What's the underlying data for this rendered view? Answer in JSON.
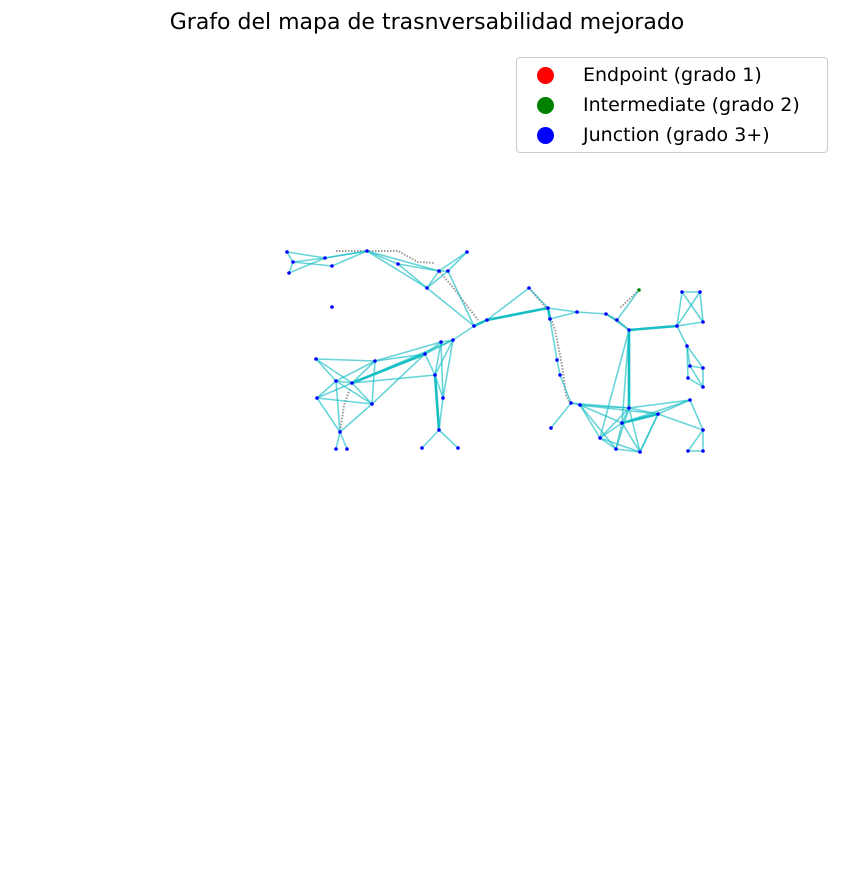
{
  "title": "Grafo del mapa de trasnversabilidad mejorado",
  "legend": {
    "items": [
      {
        "label": "Endpoint (grado 1)",
        "color": "#ff0000"
      },
      {
        "label": "Intermediate (grado 2)",
        "color": "#008000"
      },
      {
        "label": "Junction (grado 3+)",
        "color": "#0000ff"
      }
    ]
  },
  "colors": {
    "edge": "#17bfc4",
    "skeleton": "#9a9a9a",
    "junction_node": "#0000ff",
    "intermediate_node": "#008000"
  }
}
